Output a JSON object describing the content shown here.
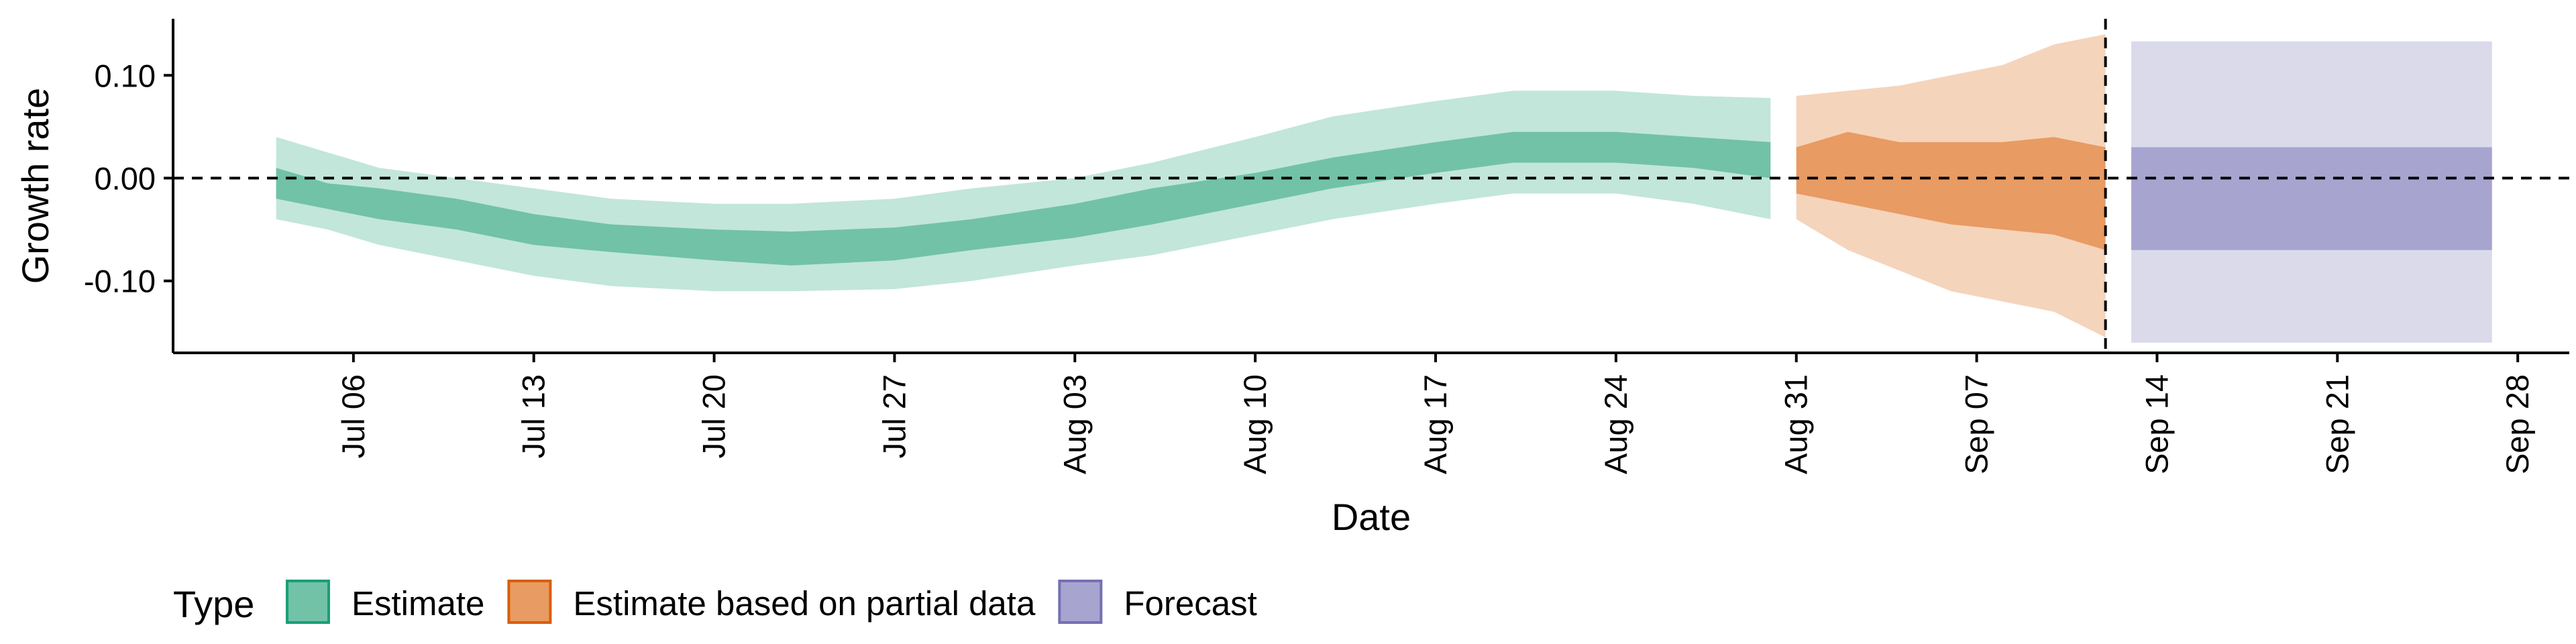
{
  "chart_data": {
    "type": "area",
    "xlabel": "Date",
    "ylabel": "Growth rate",
    "ylim": [
      -0.17,
      0.155
    ],
    "y_ticks": [
      0.1,
      0.0,
      -0.1
    ],
    "y_tick_labels": [
      "0.10",
      "0.00",
      "-0.10"
    ],
    "xlim": [
      "2020-06-29",
      "2020-09-30"
    ],
    "x_ticks": [
      "2020-07-06",
      "2020-07-13",
      "2020-07-20",
      "2020-07-27",
      "2020-08-03",
      "2020-08-10",
      "2020-08-17",
      "2020-08-24",
      "2020-08-31",
      "2020-09-07",
      "2020-09-14",
      "2020-09-21",
      "2020-09-28"
    ],
    "x_tick_labels": [
      "Jul 06",
      "Jul 13",
      "Jul 20",
      "Jul 27",
      "Aug 03",
      "Aug 10",
      "Aug 17",
      "Aug 24",
      "Aug 31",
      "Sep 07",
      "Sep 14",
      "Sep 21",
      "Sep 28"
    ],
    "reference_hline": 0.0,
    "reference_vline": "2020-09-12",
    "grid": false,
    "legend": {
      "title": "Type",
      "position": "bottom-left",
      "entries": [
        {
          "label": "Estimate",
          "color": "#72c2a7",
          "border": "#1b9e77"
        },
        {
          "label": "Estimate based on partial data",
          "color": "#e89b62",
          "border": "#d95f02"
        },
        {
          "label": "Forecast",
          "color": "#a8a4d0",
          "border": "#7570b3"
        }
      ]
    },
    "series": [
      {
        "name": "Estimate",
        "outer_color": "#c2e6da",
        "inner_color": "#72c2a7",
        "x": [
          "2020-07-03",
          "2020-07-05",
          "2020-07-07",
          "2020-07-10",
          "2020-07-13",
          "2020-07-16",
          "2020-07-20",
          "2020-07-23",
          "2020-07-27",
          "2020-07-30",
          "2020-08-03",
          "2020-08-06",
          "2020-08-10",
          "2020-08-13",
          "2020-08-17",
          "2020-08-20",
          "2020-08-24",
          "2020-08-27",
          "2020-08-30"
        ],
        "outer_lower": [
          -0.04,
          -0.05,
          -0.065,
          -0.08,
          -0.095,
          -0.105,
          -0.11,
          -0.11,
          -0.108,
          -0.1,
          -0.085,
          -0.075,
          -0.055,
          -0.04,
          -0.025,
          -0.015,
          -0.015,
          -0.025,
          -0.04
        ],
        "outer_upper": [
          0.04,
          0.025,
          0.01,
          0.0,
          -0.01,
          -0.02,
          -0.025,
          -0.025,
          -0.02,
          -0.01,
          0.0,
          0.015,
          0.04,
          0.06,
          0.075,
          0.085,
          0.085,
          0.08,
          0.078
        ],
        "inner_lower": [
          -0.02,
          -0.03,
          -0.04,
          -0.05,
          -0.065,
          -0.072,
          -0.08,
          -0.085,
          -0.08,
          -0.07,
          -0.058,
          -0.045,
          -0.025,
          -0.01,
          0.005,
          0.015,
          0.015,
          0.01,
          0.0
        ],
        "inner_upper": [
          0.01,
          -0.005,
          -0.01,
          -0.02,
          -0.035,
          -0.045,
          -0.05,
          -0.052,
          -0.048,
          -0.04,
          -0.025,
          -0.01,
          0.005,
          0.02,
          0.035,
          0.045,
          0.045,
          0.04,
          0.035
        ]
      },
      {
        "name": "Estimate based on partial data",
        "outer_color": "#f5d4bc",
        "inner_color": "#e89b62",
        "x": [
          "2020-08-31",
          "2020-09-02",
          "2020-09-04",
          "2020-09-06",
          "2020-09-08",
          "2020-09-10",
          "2020-09-12"
        ],
        "outer_lower": [
          -0.04,
          -0.07,
          -0.09,
          -0.11,
          -0.12,
          -0.13,
          -0.155
        ],
        "outer_upper": [
          0.08,
          0.085,
          0.09,
          0.1,
          0.11,
          0.13,
          0.14
        ],
        "inner_lower": [
          -0.015,
          -0.025,
          -0.035,
          -0.045,
          -0.05,
          -0.055,
          -0.07
        ],
        "inner_upper": [
          0.03,
          0.045,
          0.035,
          0.035,
          0.035,
          0.04,
          0.03
        ]
      },
      {
        "name": "Forecast",
        "outer_color": "#dadaeb",
        "inner_color": "#a8a4d0",
        "x": [
          "2020-09-13",
          "2020-09-27"
        ],
        "outer_lower": [
          -0.16,
          -0.16
        ],
        "outer_upper": [
          0.133,
          0.133
        ],
        "inner_lower": [
          -0.07,
          -0.07
        ],
        "inner_upper": [
          0.03,
          0.03
        ]
      }
    ]
  }
}
